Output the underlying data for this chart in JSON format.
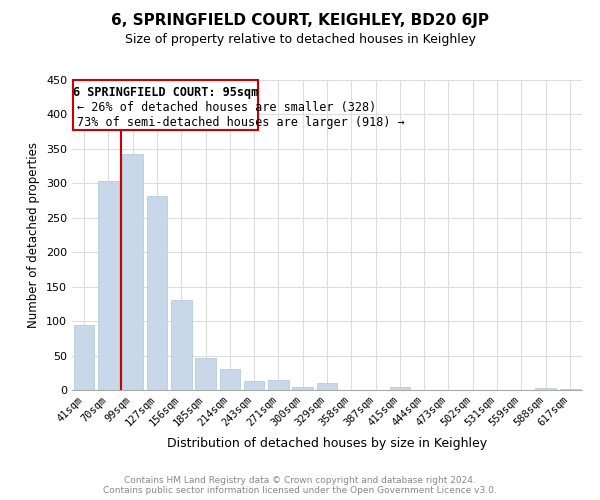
{
  "title": "6, SPRINGFIELD COURT, KEIGHLEY, BD20 6JP",
  "subtitle": "Size of property relative to detached houses in Keighley",
  "xlabel": "Distribution of detached houses by size in Keighley",
  "ylabel": "Number of detached properties",
  "bar_color": "#c8d8e8",
  "bar_edge_color": "#aec6d8",
  "categories": [
    "41sqm",
    "70sqm",
    "99sqm",
    "127sqm",
    "156sqm",
    "185sqm",
    "214sqm",
    "243sqm",
    "271sqm",
    "300sqm",
    "329sqm",
    "358sqm",
    "387sqm",
    "415sqm",
    "444sqm",
    "473sqm",
    "502sqm",
    "531sqm",
    "559sqm",
    "588sqm",
    "617sqm"
  ],
  "values": [
    95,
    303,
    342,
    281,
    131,
    47,
    30,
    13,
    15,
    5,
    10,
    0,
    0,
    5,
    0,
    0,
    0,
    0,
    0,
    3,
    2
  ],
  "ylim": [
    0,
    450
  ],
  "yticks": [
    0,
    50,
    100,
    150,
    200,
    250,
    300,
    350,
    400,
    450
  ],
  "vline_color": "#cc0000",
  "annotation_title": "6 SPRINGFIELD COURT: 95sqm",
  "annotation_line1": "← 26% of detached houses are smaller (328)",
  "annotation_line2": "73% of semi-detached houses are larger (918) →",
  "annotation_box_color": "#ffffff",
  "annotation_box_edge": "#cc0000",
  "footer_line1": "Contains HM Land Registry data © Crown copyright and database right 2024.",
  "footer_line2": "Contains public sector information licensed under the Open Government Licence v3.0.",
  "background_color": "#ffffff",
  "grid_color": "#dddddd"
}
